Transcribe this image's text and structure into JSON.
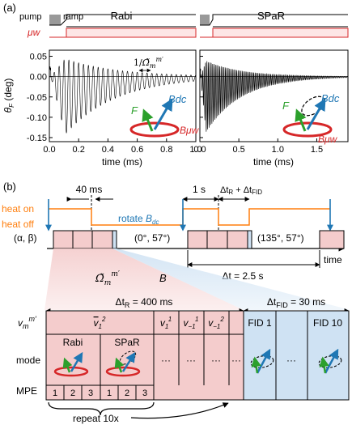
{
  "panel_a": {
    "label": "(a)",
    "pulse_labels": {
      "pump": "pump",
      "ramp": "ramp",
      "uw": "μw"
    },
    "rabi_title": "Rabi",
    "spar_title": "SPaR",
    "ylabel": "θF (deg)",
    "xlabel": "time (ms)",
    "rabi_annotation": "1/Ω̃m",
    "vector_labels": {
      "F": "F",
      "Bdc": "Bdc",
      "Buw": "Bμw"
    },
    "colors": {
      "pump": "#999999",
      "uw": "#d62728",
      "F": "#2ca02c",
      "Bdc": "#1f77b4",
      "Buw": "#d62728"
    }
  },
  "chart_data": [
    {
      "type": "line",
      "title": "Rabi",
      "xlabel": "time (ms)",
      "ylabel": "θF (deg)",
      "xlim": [
        0,
        1.0
      ],
      "ylim": [
        -0.16,
        0.065
      ],
      "x_ticks": [
        "0.0",
        "0.2",
        "0.4",
        "0.6",
        "0.8",
        "1.0"
      ],
      "y_ticks": [
        "0.05",
        "0.00",
        "-0.05",
        "-0.10",
        "-0.15"
      ],
      "signal": {
        "peak_positive": 0.045,
        "peak_negative": -0.145,
        "peak_time": 0.1,
        "decay_ms": 0.35,
        "frequency_khz": 30
      }
    },
    {
      "type": "line",
      "title": "SPaR",
      "xlabel": "time (ms)",
      "xlim": [
        0,
        1.9
      ],
      "ylim": [
        -0.16,
        0.065
      ],
      "x_ticks": [
        "0.0",
        "0.5",
        "1.0",
        "1.5"
      ],
      "signal": {
        "peak_positive": 0.04,
        "peak_negative": -0.14,
        "peak_time": 0.07,
        "decay_ms": 0.45,
        "frequency_khz": 55
      }
    }
  ],
  "panel_b": {
    "label": "(b)",
    "t40": "40 ms",
    "t1s": "1 s",
    "tr_fid": "ΔtR + ΔtFID",
    "heat_on": "heat on",
    "heat_off": "heat off",
    "rotate": "rotate Bdc",
    "alpha_beta": "(α, β)",
    "angle1": "(0°, 57°)",
    "angle2": "(135°, 57°)",
    "dt": "Δt = 2.5 s",
    "time": "time",
    "omega": "Ω̃m",
    "B": "B",
    "dtR": "ΔtR = 400 ms",
    "dtFID": "ΔtFID = 30 ms",
    "row_vm": "vm",
    "row_mode": "mode",
    "row_mpe": "MPE",
    "v21": "v12",
    "v11": "v11",
    "vm11": "v−11",
    "vm21": "v−12",
    "rabi": "Rabi",
    "spar": "SPaR",
    "mpe": [
      "1",
      "2",
      "3",
      "1",
      "2",
      "3"
    ],
    "fid1": "FID 1",
    "fid10": "FID 10",
    "dots": "···",
    "repeat": "repeat 10x",
    "colors": {
      "heat": "#ff7f0e",
      "pink": "#f4cccc",
      "blue": "#cfe2f3"
    }
  }
}
